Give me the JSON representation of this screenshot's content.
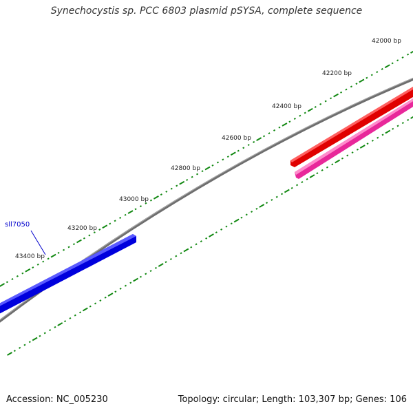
{
  "title": "Synechocystis sp. PCC 6803 plasmid pSYSA, complete sequence",
  "footer": {
    "accession": "Accession: NC_005230",
    "summary": "Topology: circular; Length: 103,307 bp; Genes: 106"
  },
  "ticks": {
    "labels": [
      "42000 bp",
      "42200 bp",
      "42400 bp",
      "42600 bp",
      "42800 bp",
      "43000 bp",
      "43200 bp",
      "43400 bp"
    ]
  },
  "genes": [
    {
      "label": "sll7050",
      "color": "#0000ee",
      "strand": "forward"
    },
    {
      "label": "",
      "color": "#ee0000",
      "strand": "forward"
    },
    {
      "label": "",
      "color": "#ee2ca0",
      "strand": "reverse"
    }
  ],
  "colors": {
    "backbone": "#777777",
    "tick": "#118811",
    "label_line": "#0000cc"
  }
}
